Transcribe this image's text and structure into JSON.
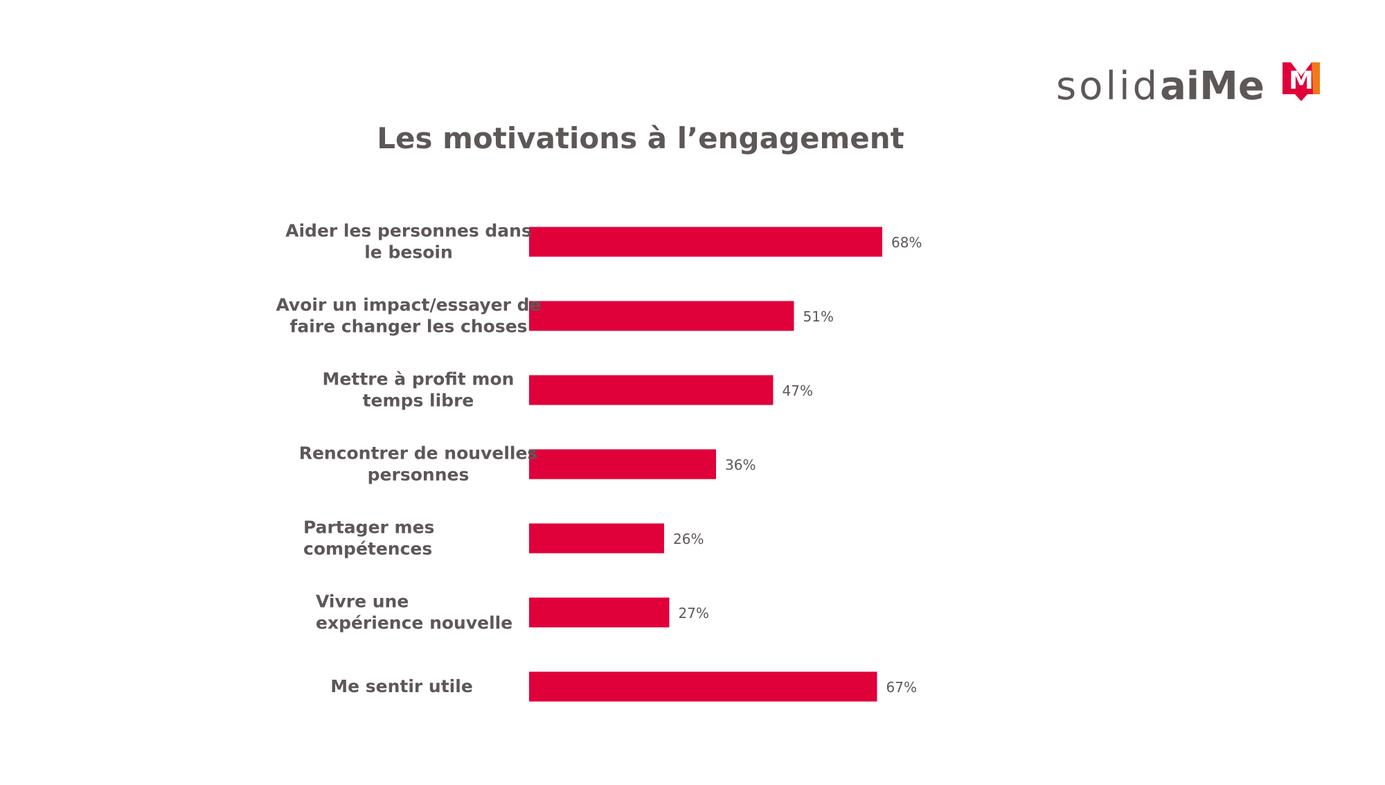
{
  "brand": {
    "wordmark_light": "solid",
    "wordmark_bold": "aiMe",
    "logo_letter": "M",
    "text_color": "#5e5757",
    "logo_color": "#e0003a",
    "logo_accent": "#f07a1a"
  },
  "chart_data": {
    "type": "bar",
    "orientation": "horizontal",
    "title": "Les motivations à l’engagement",
    "categories": [
      [
        "Aider les personnes dans",
        "le besoin"
      ],
      [
        "Avoir un impact/essayer de",
        "faire changer les choses"
      ],
      [
        "Mettre à profit mon",
        "temps libre"
      ],
      [
        "Rencontrer de nouvelles",
        "personnes"
      ],
      [
        "Partager mes",
        "compétences"
      ],
      [
        "Vivre une",
        "expérience nouvelle"
      ],
      [
        "Me sentir utile"
      ]
    ],
    "values": [
      68,
      51,
      47,
      36,
      26,
      27,
      67
    ],
    "value_labels": [
      "68%",
      "51%",
      "47%",
      "36%",
      "26%",
      "27%",
      "67%"
    ],
    "unit": "%",
    "xlim": [
      0,
      100
    ],
    "grid": false,
    "legend": "none",
    "bar_color": "#e0003a",
    "text_color": "#5e5757"
  }
}
